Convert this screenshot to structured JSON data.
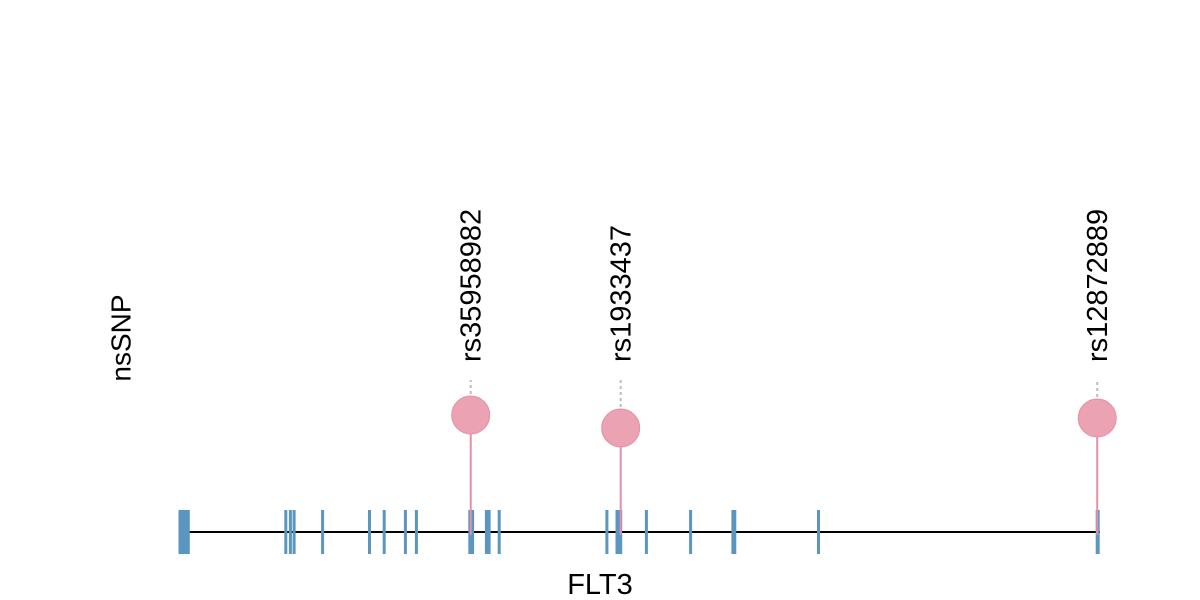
{
  "track_label": "nsSNP",
  "gene": {
    "name": "FLT3",
    "start": 0,
    "end": 1000
  },
  "exons": [
    0,
    1,
    2,
    3,
    4,
    5,
    6,
    7,
    8,
    9,
    115,
    120,
    124,
    155,
    206,
    222,
    245,
    257,
    315,
    316,
    317,
    318,
    333,
    334,
    336,
    347,
    464,
    475,
    477,
    479,
    507,
    555,
    601,
    602,
    603,
    694,
    997,
    998
  ],
  "snps": [
    {
      "id": "rs35958982",
      "pos": 316,
      "height": 117
    },
    {
      "id": "rs1933437",
      "pos": 479,
      "height": 104
    },
    {
      "id": "rs12872889",
      "pos": 997,
      "height": 114
    }
  ],
  "colors": {
    "exon": "#5b96c0",
    "backbone": "#000000",
    "snp_head": "#eba2b2",
    "snp_stem": "#e48fa6",
    "connector": "#bcbcbc"
  }
}
